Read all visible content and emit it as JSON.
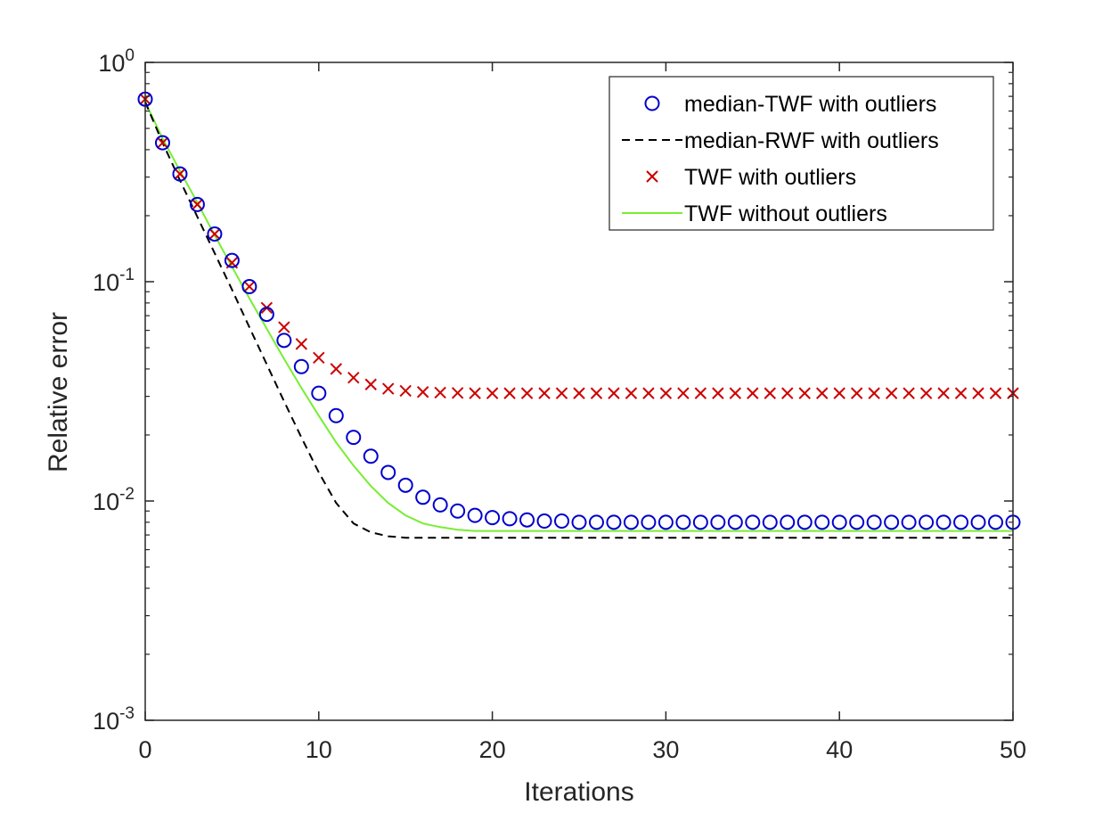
{
  "chart_data": {
    "type": "line",
    "title": "",
    "xlabel": "Iterations",
    "ylabel": "Relative error",
    "xlim": [
      0,
      50
    ],
    "ylim": [
      0.001,
      1
    ],
    "yscale": "log",
    "xticks": [
      0,
      10,
      20,
      30,
      40,
      50
    ],
    "yticks": [
      {
        "value": 1,
        "base": "10",
        "exp": "0"
      },
      {
        "value": 0.1,
        "base": "10",
        "exp": "-1"
      },
      {
        "value": 0.01,
        "base": "10",
        "exp": "-2"
      },
      {
        "value": 0.001,
        "base": "10",
        "exp": "-3"
      }
    ],
    "grid": false,
    "legend_position": "top-right",
    "series": [
      {
        "name": "median-TWF with outliers",
        "style": "circle-markers",
        "color": "#0000cc",
        "x": [
          0,
          1,
          2,
          3,
          4,
          5,
          6,
          7,
          8,
          9,
          10,
          11,
          12,
          13,
          14,
          15,
          16,
          17,
          18,
          19,
          20,
          21,
          22,
          23,
          24,
          25,
          26,
          27,
          28,
          29,
          30,
          31,
          32,
          33,
          34,
          35,
          36,
          37,
          38,
          39,
          40,
          41,
          42,
          43,
          44,
          45,
          46,
          47,
          48,
          49,
          50
        ],
        "y": [
          0.68,
          0.43,
          0.31,
          0.225,
          0.165,
          0.125,
          0.095,
          0.071,
          0.054,
          0.041,
          0.031,
          0.0245,
          0.0195,
          0.016,
          0.0135,
          0.0118,
          0.0104,
          0.0096,
          0.009,
          0.0086,
          0.0084,
          0.0083,
          0.0082,
          0.0081,
          0.0081,
          0.008,
          0.008,
          0.008,
          0.008,
          0.008,
          0.008,
          0.008,
          0.008,
          0.008,
          0.008,
          0.008,
          0.008,
          0.008,
          0.008,
          0.008,
          0.008,
          0.008,
          0.008,
          0.008,
          0.008,
          0.008,
          0.008,
          0.008,
          0.008,
          0.008,
          0.008
        ]
      },
      {
        "name": "median-RWF with outliers",
        "style": "dashed-line",
        "color": "#000000",
        "x": [
          0,
          1,
          2,
          3,
          4,
          5,
          6,
          7,
          8,
          9,
          10,
          11,
          12,
          13,
          14,
          15,
          16,
          17,
          18,
          19,
          20,
          22,
          25,
          30,
          35,
          40,
          45,
          50
        ],
        "y": [
          0.66,
          0.43,
          0.29,
          0.198,
          0.135,
          0.092,
          0.062,
          0.042,
          0.0285,
          0.0195,
          0.0135,
          0.0098,
          0.0079,
          0.0072,
          0.0069,
          0.0068,
          0.0068,
          0.0068,
          0.0068,
          0.0068,
          0.0068,
          0.0068,
          0.0068,
          0.0068,
          0.0068,
          0.0068,
          0.0068,
          0.0068
        ]
      },
      {
        "name": "TWF with outliers",
        "style": "x-markers",
        "color": "#cc0000",
        "x": [
          0,
          1,
          2,
          3,
          4,
          5,
          6,
          7,
          8,
          9,
          10,
          11,
          12,
          13,
          14,
          15,
          16,
          17,
          18,
          19,
          20,
          21,
          22,
          23,
          24,
          25,
          26,
          27,
          28,
          29,
          30,
          31,
          32,
          33,
          34,
          35,
          36,
          37,
          38,
          39,
          40,
          41,
          42,
          43,
          44,
          45,
          46,
          47,
          48,
          49,
          50
        ],
        "y": [
          0.68,
          0.43,
          0.31,
          0.225,
          0.165,
          0.122,
          0.095,
          0.076,
          0.062,
          0.052,
          0.045,
          0.04,
          0.0365,
          0.034,
          0.0325,
          0.0318,
          0.0314,
          0.0312,
          0.0311,
          0.031,
          0.031,
          0.031,
          0.031,
          0.031,
          0.031,
          0.031,
          0.031,
          0.031,
          0.031,
          0.031,
          0.031,
          0.031,
          0.031,
          0.031,
          0.031,
          0.031,
          0.031,
          0.031,
          0.031,
          0.031,
          0.031,
          0.031,
          0.031,
          0.031,
          0.031,
          0.031,
          0.031,
          0.031,
          0.031,
          0.031,
          0.031
        ]
      },
      {
        "name": "TWF without outliers",
        "style": "solid-line",
        "color": "#77ee33",
        "x": [
          0,
          1,
          2,
          3,
          4,
          5,
          6,
          7,
          8,
          9,
          10,
          11,
          12,
          13,
          14,
          15,
          16,
          17,
          18,
          19,
          20,
          21,
          22,
          25,
          30,
          35,
          40,
          45,
          50
        ],
        "y": [
          0.66,
          0.45,
          0.32,
          0.23,
          0.163,
          0.117,
          0.084,
          0.061,
          0.0445,
          0.0328,
          0.0245,
          0.0185,
          0.0145,
          0.0117,
          0.0098,
          0.0086,
          0.0079,
          0.0076,
          0.0074,
          0.0073,
          0.0073,
          0.0073,
          0.0073,
          0.0073,
          0.0073,
          0.0073,
          0.0073,
          0.0073,
          0.0073
        ]
      }
    ]
  }
}
